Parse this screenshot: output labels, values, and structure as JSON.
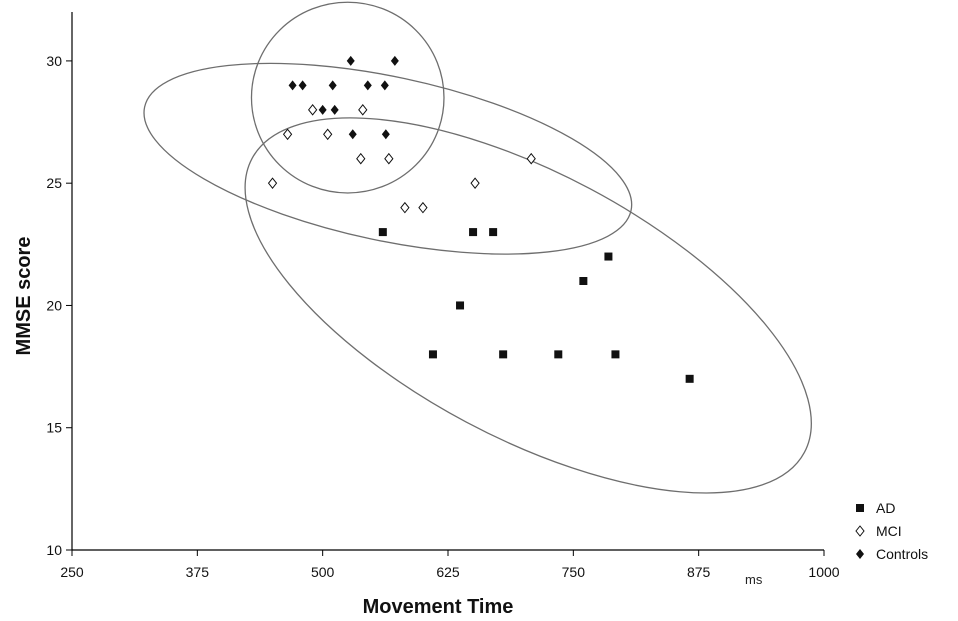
{
  "chart_data": {
    "type": "scatter",
    "title": "",
    "xlabel": "Movement Time",
    "ylabel": "MMSE score",
    "x_unit": "ms",
    "xlim": [
      250,
      1000
    ],
    "ylim": [
      10,
      32
    ],
    "xticks": [
      250,
      375,
      500,
      625,
      750,
      875,
      1000
    ],
    "yticks": [
      10,
      15,
      20,
      25,
      30
    ],
    "grid": false,
    "legend_position": "bottom-right",
    "series": [
      {
        "name": "AD",
        "marker": "filled-square",
        "points": [
          [
            560,
            23
          ],
          [
            650,
            23
          ],
          [
            670,
            23
          ],
          [
            785,
            22
          ],
          [
            760,
            21
          ],
          [
            637,
            20
          ],
          [
            610,
            18
          ],
          [
            680,
            18
          ],
          [
            735,
            18
          ],
          [
            792,
            18
          ],
          [
            866,
            17
          ]
        ]
      },
      {
        "name": "MCI",
        "marker": "open-diamond",
        "points": [
          [
            465,
            27
          ],
          [
            505,
            27
          ],
          [
            490,
            28
          ],
          [
            540,
            28
          ],
          [
            538,
            26
          ],
          [
            566,
            26
          ],
          [
            708,
            26
          ],
          [
            450,
            25
          ],
          [
            652,
            25
          ],
          [
            582,
            24
          ],
          [
            600,
            24
          ]
        ]
      },
      {
        "name": "Controls",
        "marker": "filled-diamond",
        "points": [
          [
            528,
            30
          ],
          [
            572,
            30
          ],
          [
            470,
            29
          ],
          [
            480,
            29
          ],
          [
            510,
            29
          ],
          [
            545,
            29
          ],
          [
            562,
            29
          ],
          [
            500,
            28
          ],
          [
            512,
            28
          ],
          [
            530,
            27
          ],
          [
            563,
            27
          ]
        ]
      }
    ],
    "confidence_ellipses": [
      {
        "series": "Controls",
        "center": [
          525,
          28.5
        ],
        "rx_data": 96,
        "ry_data": 3.9,
        "angle_deg": 0
      },
      {
        "series": "MCI",
        "center": [
          565,
          26
        ],
        "rx_data": 248,
        "ry_data": 3.35,
        "angle_deg": 12
      },
      {
        "series": "AD",
        "center": [
          705,
          20
        ],
        "rx_data": 312,
        "ry_data": 5.4,
        "angle_deg": 28
      }
    ]
  }
}
